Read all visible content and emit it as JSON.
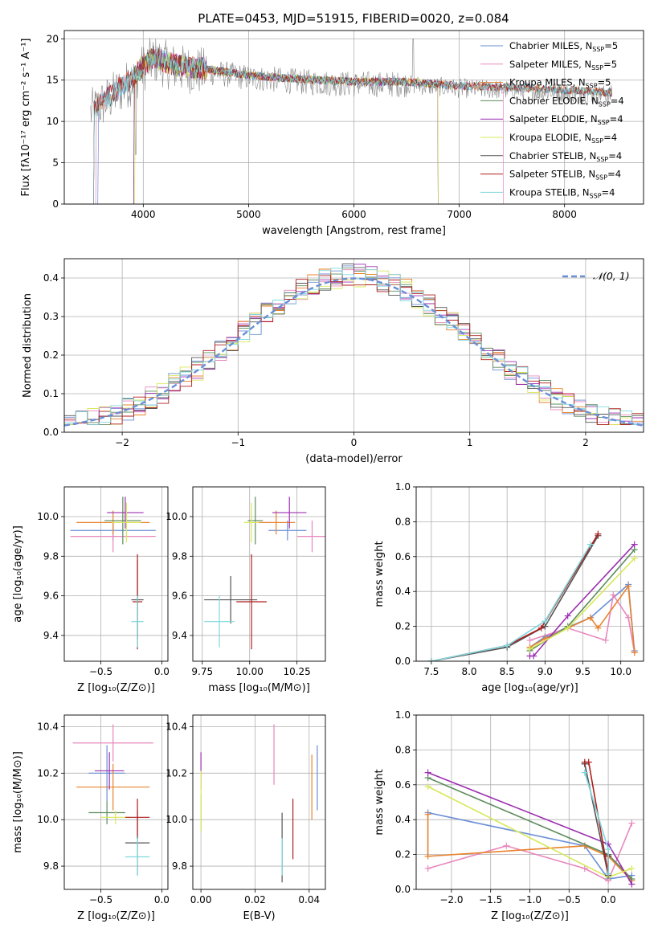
{
  "figure_title": "PLATE=0453, MJD=51915, FIBERID=0020, z=0.084",
  "chart_data": [
    {
      "id": "spectrum",
      "type": "line",
      "xlabel": "wavelength [Angstrom, rest frame]",
      "ylabel": "Flux [fλ10⁻¹⁷ erg cm⁻² s⁻¹ A⁻¹]",
      "xlim": [
        3250,
        8750
      ],
      "ylim": [
        0,
        21
      ],
      "xticks": [
        4000,
        5000,
        6000,
        7000,
        8000
      ],
      "yticks": [
        0,
        5,
        10,
        15,
        20
      ],
      "legend_position": "top-right",
      "series": [
        {
          "name": "Chabrier MILES, N_SSP=5",
          "label_main": "Chabrier MILES, N",
          "label_sub": "SSP",
          "label_tail": "=5",
          "color": "#6a8ed6"
        },
        {
          "name": "Salpeter MILES, N_SSP=5",
          "label_main": "Salpeter MILES, N",
          "label_sub": "SSP",
          "label_tail": "=5",
          "color": "#e887bd"
        },
        {
          "name": "Kroupa MILES, N_SSP=5",
          "label_main": "Kroupa MILES, N",
          "label_sub": "SSP",
          "label_tail": "=5",
          "color": "#e8822d"
        },
        {
          "name": "Chabrier ELODIE, N_SSP=4",
          "label_main": "Chabrier ELODIE, N",
          "label_sub": "SSP",
          "label_tail": "=4",
          "color": "#5e8c5e"
        },
        {
          "name": "Salpeter ELODIE, N_SSP=4",
          "label_main": "Salpeter ELODIE, N",
          "label_sub": "SSP",
          "label_tail": "=4",
          "color": "#9c2fb0"
        },
        {
          "name": "Kroupa ELODIE, N_SSP=4",
          "label_main": "Kroupa ELODIE, N",
          "label_sub": "SSP",
          "label_tail": "=4",
          "color": "#d8e85a"
        },
        {
          "name": "Chabrier STELIB, N_SSP=4",
          "label_main": "Chabrier STELIB, N",
          "label_sub": "SSP",
          "label_tail": "=4",
          "color": "#555555"
        },
        {
          "name": "Salpeter STELIB, N_SSP=4",
          "label_main": "Salpeter STELIB, N",
          "label_sub": "SSP",
          "label_tail": "=4",
          "color": "#b01e1e"
        },
        {
          "name": "Kroupa STELIB, N_SSP=4",
          "label_main": "Kroupa STELIB, N",
          "label_sub": "SSP",
          "label_tail": "=4",
          "color": "#7fd8dd"
        }
      ],
      "data_series": {
        "color": "#888888",
        "continuum": [
          [
            3500,
            11
          ],
          [
            3700,
            13
          ],
          [
            3900,
            15
          ],
          [
            4000,
            16.5
          ],
          [
            4100,
            17.5
          ],
          [
            4300,
            16.5
          ],
          [
            4600,
            16
          ],
          [
            5000,
            15.3
          ],
          [
            5500,
            14.8
          ],
          [
            6000,
            14.5
          ],
          [
            6500,
            14.5
          ],
          [
            7000,
            14.0
          ],
          [
            7500,
            13.8
          ],
          [
            8000,
            13.5
          ],
          [
            8450,
            13.2
          ]
        ]
      }
    },
    {
      "id": "residuals",
      "type": "line",
      "xlabel": "(data-model)/error",
      "ylabel": "Normed distribution",
      "xlim": [
        -2.5,
        2.5
      ],
      "ylim": [
        0,
        0.45
      ],
      "xticks": [
        -2,
        -1,
        0,
        1,
        2
      ],
      "yticks": [
        0.0,
        0.1,
        0.2,
        0.3,
        0.4
      ],
      "legend_position": "top-right",
      "reference": {
        "name": "𝒩(0, 1)",
        "color": "#6a8ed6",
        "style": "dashed",
        "mean": 0,
        "sigma": 1
      },
      "bin_edges_start": -2.5,
      "bin_width": 0.1,
      "mean_curve_note": "step histograms, one per model series"
    },
    {
      "id": "age_vs_Z",
      "type": "scatter",
      "xlabel": "Z [log₁₀(Z/Z⊙)]",
      "ylabel": "age  [log₁₀(age/yr)]",
      "xlim": [
        -0.8,
        0.05
      ],
      "ylim": [
        9.27,
        10.15
      ],
      "xticks": [
        -0.5,
        0.0
      ],
      "yticks": [
        9.4,
        9.6,
        9.8,
        10.0
      ],
      "points": [
        {
          "series": "Chabrier MILES",
          "x": -0.4,
          "y": 9.93,
          "xerr": 0.35,
          "yerr": 0.05,
          "color": "#6a8ed6"
        },
        {
          "series": "Salpeter MILES",
          "x": -0.4,
          "y": 9.9,
          "xerr": 0.35,
          "yerr": 0.08,
          "color": "#e887bd"
        },
        {
          "series": "Kroupa MILES",
          "x": -0.4,
          "y": 9.97,
          "xerr": 0.3,
          "yerr": 0.06,
          "color": "#e8822d"
        },
        {
          "series": "Chabrier ELODIE",
          "x": -0.32,
          "y": 9.98,
          "xerr": 0.15,
          "yerr": 0.12,
          "color": "#5e8c5e"
        },
        {
          "series": "Salpeter ELODIE",
          "x": -0.3,
          "y": 10.02,
          "xerr": 0.15,
          "yerr": 0.08,
          "color": "#9c2fb0"
        },
        {
          "series": "Kroupa ELODIE",
          "x": -0.29,
          "y": 9.97,
          "xerr": 0.12,
          "yerr": 0.1,
          "color": "#d8e85a"
        },
        {
          "series": "Chabrier STELIB",
          "x": -0.2,
          "y": 9.58,
          "xerr": 0.05,
          "yerr": 0.2,
          "color": "#555555"
        },
        {
          "series": "Salpeter STELIB",
          "x": -0.2,
          "y": 9.57,
          "xerr": 0.04,
          "yerr": 0.24,
          "color": "#b01e1e"
        },
        {
          "series": "Kroupa STELIB",
          "x": -0.2,
          "y": 9.47,
          "xerr": 0.05,
          "yerr": 0.13,
          "color": "#7fd8dd"
        }
      ]
    },
    {
      "id": "age_vs_mass",
      "type": "scatter",
      "xlabel": "mass [log₁₀(M/M⊙)]",
      "ylabel": "",
      "xlim": [
        9.7,
        10.4
      ],
      "ylim": [
        9.27,
        10.15
      ],
      "xticks": [
        9.75,
        10.0,
        10.25
      ],
      "yticks": [
        9.4,
        9.6,
        9.8,
        10.0
      ],
      "points": [
        {
          "series": "Chabrier MILES",
          "x": 10.2,
          "y": 9.93,
          "xerr": 0.1,
          "yerr": 0.05,
          "color": "#6a8ed6"
        },
        {
          "series": "Salpeter MILES",
          "x": 10.33,
          "y": 9.9,
          "xerr": 0.08,
          "yerr": 0.08,
          "color": "#e887bd"
        },
        {
          "series": "Kroupa MILES",
          "x": 10.14,
          "y": 9.97,
          "xerr": 0.1,
          "yerr": 0.06,
          "color": "#e8822d"
        },
        {
          "series": "Chabrier ELODIE",
          "x": 10.03,
          "y": 9.98,
          "xerr": 0.04,
          "yerr": 0.12,
          "color": "#5e8c5e"
        },
        {
          "series": "Salpeter ELODIE",
          "x": 10.21,
          "y": 10.02,
          "xerr": 0.09,
          "yerr": 0.08,
          "color": "#9c2fb0"
        },
        {
          "series": "Kroupa ELODIE",
          "x": 10.01,
          "y": 9.97,
          "xerr": 0.04,
          "yerr": 0.1,
          "color": "#d8e85a"
        },
        {
          "series": "Chabrier STELIB",
          "x": 9.9,
          "y": 9.58,
          "xerr": 0.14,
          "yerr": 0.12,
          "color": "#555555"
        },
        {
          "series": "Salpeter STELIB",
          "x": 10.01,
          "y": 9.57,
          "xerr": 0.08,
          "yerr": 0.24,
          "color": "#b01e1e"
        },
        {
          "series": "Kroupa STELIB",
          "x": 9.84,
          "y": 9.47,
          "xerr": 0.08,
          "yerr": 0.13,
          "color": "#7fd8dd"
        }
      ]
    },
    {
      "id": "weight_vs_age",
      "type": "line",
      "xlabel": "age  [log₁₀(age/yr)]",
      "ylabel": "mass weight",
      "xlim": [
        7.3,
        10.3
      ],
      "ylim": [
        0,
        1.0
      ],
      "xticks": [
        7.5,
        8.0,
        8.5,
        9.0,
        9.5,
        10.0
      ],
      "yticks": [
        0.0,
        0.2,
        0.4,
        0.6,
        0.8,
        1.0
      ],
      "series": [
        {
          "name": "Chabrier MILES",
          "color": "#6a8ed6",
          "x": [
            8.8,
            9.0,
            9.6,
            10.1,
            10.18
          ],
          "y": [
            0.08,
            0.14,
            0.25,
            0.44,
            0.06
          ]
        },
        {
          "name": "Salpeter MILES",
          "color": "#e887bd",
          "x": [
            8.8,
            9.3,
            9.8,
            9.9,
            10.1,
            10.18
          ],
          "y": [
            0.12,
            0.19,
            0.12,
            0.38,
            0.25,
            0.05
          ]
        },
        {
          "name": "Kroupa MILES",
          "color": "#e8822d",
          "x": [
            8.8,
            9.0,
            9.6,
            9.7,
            10.1,
            10.18
          ],
          "y": [
            0.08,
            0.13,
            0.25,
            0.19,
            0.43,
            0.05
          ]
        },
        {
          "name": "Chabrier ELODIE",
          "color": "#5e8c5e",
          "x": [
            8.8,
            9.3,
            10.18
          ],
          "y": [
            0.06,
            0.2,
            0.64
          ]
        },
        {
          "name": "Salpeter ELODIE",
          "color": "#9c2fb0",
          "x": [
            8.8,
            8.85,
            9.3,
            10.18
          ],
          "y": [
            0.03,
            0.03,
            0.26,
            0.67
          ]
        },
        {
          "name": "Kroupa ELODIE",
          "color": "#d8e85a",
          "x": [
            8.8,
            9.3,
            10.18
          ],
          "y": [
            0.07,
            0.19,
            0.59
          ]
        },
        {
          "name": "Chabrier STELIB",
          "color": "#555555",
          "x": [
            7.5,
            8.5,
            9.0,
            9.7
          ],
          "y": [
            0.0,
            0.08,
            0.2,
            0.72
          ]
        },
        {
          "name": "Salpeter STELIB",
          "color": "#b01e1e",
          "x": [
            7.5,
            8.5,
            8.95,
            9.7
          ],
          "y": [
            0.0,
            0.09,
            0.19,
            0.73
          ]
        },
        {
          "name": "Kroupa STELIB",
          "color": "#7fd8dd",
          "x": [
            7.5,
            8.5,
            9.0,
            9.6
          ],
          "y": [
            0.0,
            0.09,
            0.23,
            0.67
          ]
        }
      ]
    },
    {
      "id": "mass_vs_Z",
      "type": "scatter",
      "xlabel": "Z [log₁₀(Z/Z⊙)]",
      "ylabel": "mass [log₁₀(M/M⊙)]",
      "xlim": [
        -0.8,
        0.05
      ],
      "ylim": [
        9.7,
        10.45
      ],
      "xticks": [
        -0.5,
        0.0
      ],
      "yticks": [
        9.8,
        10.0,
        10.2,
        10.4
      ],
      "points": [
        {
          "series": "Chabrier MILES",
          "x": -0.45,
          "y": 10.2,
          "xerr": 0.15,
          "yerr": 0.12,
          "color": "#6a8ed6"
        },
        {
          "series": "Salpeter MILES",
          "x": -0.4,
          "y": 10.33,
          "xerr": 0.33,
          "yerr": 0.08,
          "color": "#e887bd"
        },
        {
          "series": "Kroupa MILES",
          "x": -0.4,
          "y": 10.14,
          "xerr": 0.3,
          "yerr": 0.1,
          "color": "#e8822d"
        },
        {
          "series": "Chabrier ELODIE",
          "x": -0.45,
          "y": 10.03,
          "xerr": 0.15,
          "yerr": 0.05,
          "color": "#5e8c5e"
        },
        {
          "series": "Salpeter ELODIE",
          "x": -0.43,
          "y": 10.21,
          "xerr": 0.12,
          "yerr": 0.08,
          "color": "#9c2fb0"
        },
        {
          "series": "Kroupa ELODIE",
          "x": -0.38,
          "y": 10.01,
          "xerr": 0.12,
          "yerr": 0.03,
          "color": "#d8e85a"
        },
        {
          "series": "Chabrier STELIB",
          "x": -0.2,
          "y": 9.9,
          "xerr": 0.1,
          "yerr": 0.14,
          "color": "#555555"
        },
        {
          "series": "Salpeter STELIB",
          "x": -0.2,
          "y": 10.01,
          "xerr": 0.1,
          "yerr": 0.08,
          "color": "#b01e1e"
        },
        {
          "series": "Kroupa STELIB",
          "x": -0.2,
          "y": 9.84,
          "xerr": 0.1,
          "yerr": 0.08,
          "color": "#7fd8dd"
        }
      ]
    },
    {
      "id": "mass_vs_ebv",
      "type": "scatter",
      "xlabel": "E(B-V)",
      "ylabel": "",
      "xlim": [
        -0.003,
        0.046
      ],
      "ylim": [
        9.7,
        10.45
      ],
      "xticks": [
        0.0,
        0.02,
        0.04
      ],
      "yticks": [
        9.8,
        10.0,
        10.2,
        10.4
      ],
      "points": [
        {
          "series": "Chabrier MILES",
          "x": 0.043,
          "y": 10.18,
          "yerr": 0.14,
          "color": "#6a8ed6"
        },
        {
          "series": "Salpeter MILES",
          "x": 0.027,
          "y": 10.28,
          "yerr": 0.13,
          "color": "#e887bd"
        },
        {
          "series": "Kroupa MILES",
          "x": 0.041,
          "y": 10.14,
          "yerr": 0.14,
          "color": "#e8822d"
        },
        {
          "series": "Chabrier ELODIE",
          "x": 0.0,
          "y": 10.03,
          "yerr": 0.08,
          "color": "#5e8c5e"
        },
        {
          "series": "Salpeter ELODIE",
          "x": 0.0,
          "y": 10.21,
          "yerr": 0.08,
          "color": "#9c2fb0"
        },
        {
          "series": "Kroupa ELODIE",
          "x": 0.0,
          "y": 10.08,
          "yerr": 0.13,
          "color": "#d8e85a"
        },
        {
          "series": "Chabrier STELIB",
          "x": 0.03,
          "y": 9.88,
          "yerr": 0.15,
          "color": "#555555"
        },
        {
          "series": "Salpeter STELIB",
          "x": 0.034,
          "y": 9.96,
          "yerr": 0.13,
          "color": "#b01e1e"
        },
        {
          "series": "Kroupa STELIB",
          "x": 0.03,
          "y": 9.84,
          "yerr": 0.08,
          "color": "#7fd8dd"
        }
      ]
    },
    {
      "id": "weight_vs_Z",
      "type": "line",
      "xlabel": "Z [log₁₀(Z/Z⊙)]",
      "ylabel": "mass weight",
      "xlim": [
        -2.45,
        0.45
      ],
      "ylim": [
        0,
        1.0
      ],
      "xticks": [
        -2.0,
        -1.5,
        -1.0,
        -0.5,
        0.0
      ],
      "yticks": [
        0.0,
        0.2,
        0.4,
        0.6,
        0.8,
        1.0
      ],
      "series": [
        {
          "name": "Chabrier MILES",
          "color": "#6a8ed6",
          "x": [
            -2.3,
            -0.3,
            0.0,
            0.3
          ],
          "y": [
            0.44,
            0.25,
            0.06,
            0.08
          ]
        },
        {
          "name": "Salpeter MILES",
          "color": "#e887bd",
          "x": [
            -2.3,
            -1.3,
            -0.3,
            0.0,
            0.3
          ],
          "y": [
            0.12,
            0.25,
            0.12,
            0.05,
            0.38
          ]
        },
        {
          "name": "Kroupa MILES",
          "color": "#e8822d",
          "x": [
            -2.3,
            -2.3,
            -0.3,
            0.0,
            0.3
          ],
          "y": [
            0.43,
            0.19,
            0.25,
            0.19,
            0.05
          ]
        },
        {
          "name": "Chabrier ELODIE",
          "color": "#5e8c5e",
          "x": [
            -2.3,
            0.0,
            0.3
          ],
          "y": [
            0.64,
            0.2,
            0.06
          ]
        },
        {
          "name": "Salpeter ELODIE",
          "color": "#9c2fb0",
          "x": [
            -2.3,
            0.0,
            0.3
          ],
          "y": [
            0.67,
            0.26,
            0.03
          ]
        },
        {
          "name": "Kroupa ELODIE",
          "color": "#d8e85a",
          "x": [
            -2.3,
            0.0,
            0.3
          ],
          "y": [
            0.59,
            0.07,
            0.12
          ]
        },
        {
          "name": "Chabrier STELIB",
          "color": "#555555",
          "x": [
            -0.3,
            -0.3,
            0.0,
            0.0
          ],
          "y": [
            0.72,
            0.72,
            0.08,
            0.2
          ]
        },
        {
          "name": "Salpeter STELIB",
          "color": "#b01e1e",
          "x": [
            -0.3,
            -0.25,
            0.0,
            0.0
          ],
          "y": [
            0.73,
            0.73,
            0.09,
            0.19
          ]
        },
        {
          "name": "Kroupa STELIB",
          "color": "#7fd8dd",
          "x": [
            -0.3,
            0.0,
            0.0
          ],
          "y": [
            0.67,
            0.23,
            0.09
          ]
        }
      ]
    }
  ]
}
